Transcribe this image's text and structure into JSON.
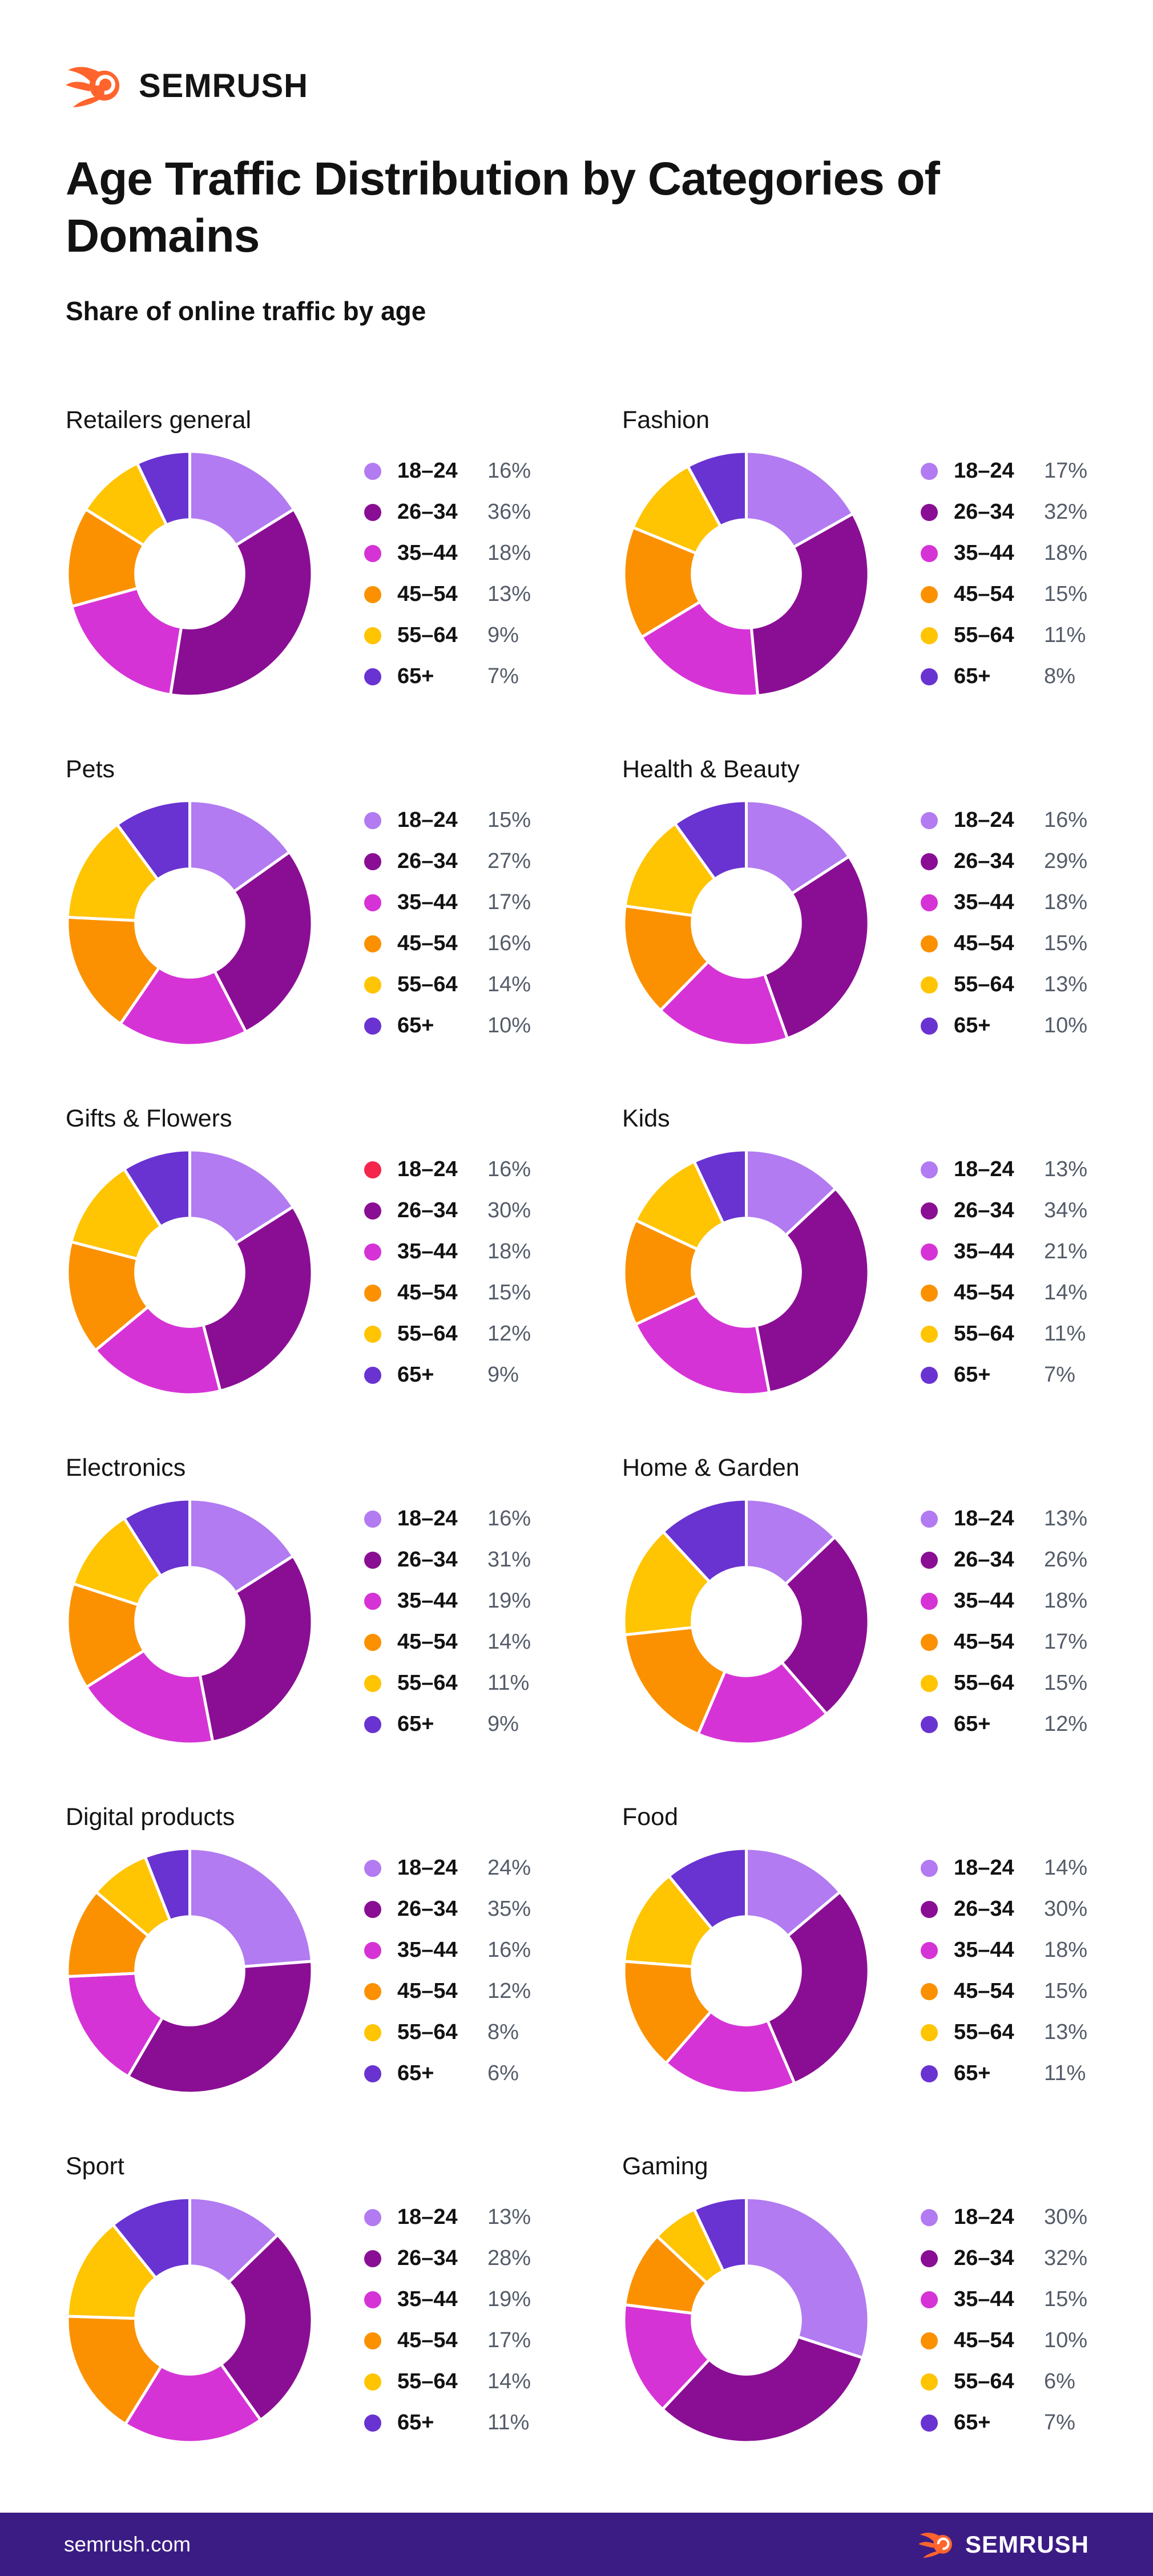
{
  "header": {
    "brand": "SEMRUSH",
    "title": "Age Traffic Distribution by Categories of Domains",
    "subtitle": "Share of online traffic by age"
  },
  "footer": {
    "site": "semrush.com",
    "brand": "SEMRUSH"
  },
  "legend_labels": [
    "18–24",
    "26–34",
    "35–44",
    "45–54",
    "55–64",
    "65+"
  ],
  "colors": {
    "palette": [
      "#B27BF1",
      "#8A0E94",
      "#D633D6",
      "#FB9100",
      "#FFC402",
      "#6933D1"
    ],
    "gifts_flowers_red_dot": "#F4264C",
    "brand_orange": "#FF642D",
    "footer_bg": "#3B1C84",
    "value_text": "#545C69"
  },
  "chart_data": [
    {
      "type": "donut",
      "title": "Retailers general",
      "categories": [
        "18–24",
        "26–34",
        "35–44",
        "45–54",
        "55–64",
        "65+"
      ],
      "values": [
        16,
        36,
        18,
        13,
        9,
        7
      ]
    },
    {
      "type": "donut",
      "title": "Fashion",
      "categories": [
        "18–24",
        "26–34",
        "35–44",
        "45–54",
        "55–64",
        "65+"
      ],
      "values": [
        17,
        32,
        18,
        15,
        11,
        8
      ]
    },
    {
      "type": "donut",
      "title": "Pets",
      "categories": [
        "18–24",
        "26–34",
        "35–44",
        "45–54",
        "55–64",
        "65+"
      ],
      "values": [
        15,
        27,
        17,
        16,
        14,
        10
      ]
    },
    {
      "type": "donut",
      "title": "Health & Beauty",
      "categories": [
        "18–24",
        "26–34",
        "35–44",
        "45–54",
        "55–64",
        "65+"
      ],
      "values": [
        16,
        29,
        18,
        15,
        13,
        10
      ]
    },
    {
      "type": "donut",
      "title": "Gifts & Flowers",
      "categories": [
        "18–24",
        "26–34",
        "35–44",
        "45–54",
        "55–64",
        "65+"
      ],
      "values": [
        16,
        30,
        18,
        15,
        12,
        9
      ],
      "legend_dot_overrides": {
        "0": "#F4264C"
      }
    },
    {
      "type": "donut",
      "title": "Kids",
      "categories": [
        "18–24",
        "26–34",
        "35–44",
        "45–54",
        "55–64",
        "65+"
      ],
      "values": [
        13,
        34,
        21,
        14,
        11,
        7
      ]
    },
    {
      "type": "donut",
      "title": "Electronics",
      "categories": [
        "18–24",
        "26–34",
        "35–44",
        "45–54",
        "55–64",
        "65+"
      ],
      "values": [
        16,
        31,
        19,
        14,
        11,
        9
      ]
    },
    {
      "type": "donut",
      "title": "Home & Garden",
      "categories": [
        "18–24",
        "26–34",
        "35–44",
        "45–54",
        "55–64",
        "65+"
      ],
      "values": [
        13,
        26,
        18,
        17,
        15,
        12
      ]
    },
    {
      "type": "donut",
      "title": "Digital products",
      "categories": [
        "18–24",
        "26–34",
        "35–44",
        "45–54",
        "55–64",
        "65+"
      ],
      "values": [
        24,
        35,
        16,
        12,
        8,
        6
      ]
    },
    {
      "type": "donut",
      "title": "Food",
      "categories": [
        "18–24",
        "26–34",
        "35–44",
        "45–54",
        "55–64",
        "65+"
      ],
      "values": [
        14,
        30,
        18,
        15,
        13,
        11
      ]
    },
    {
      "type": "donut",
      "title": "Sport",
      "categories": [
        "18–24",
        "26–34",
        "35–44",
        "45–54",
        "55–64",
        "65+"
      ],
      "values": [
        13,
        28,
        19,
        17,
        14,
        11
      ]
    },
    {
      "type": "donut",
      "title": "Gaming",
      "categories": [
        "18–24",
        "26–34",
        "35–44",
        "45–54",
        "55–64",
        "65+"
      ],
      "values": [
        30,
        32,
        15,
        10,
        6,
        7
      ]
    }
  ]
}
